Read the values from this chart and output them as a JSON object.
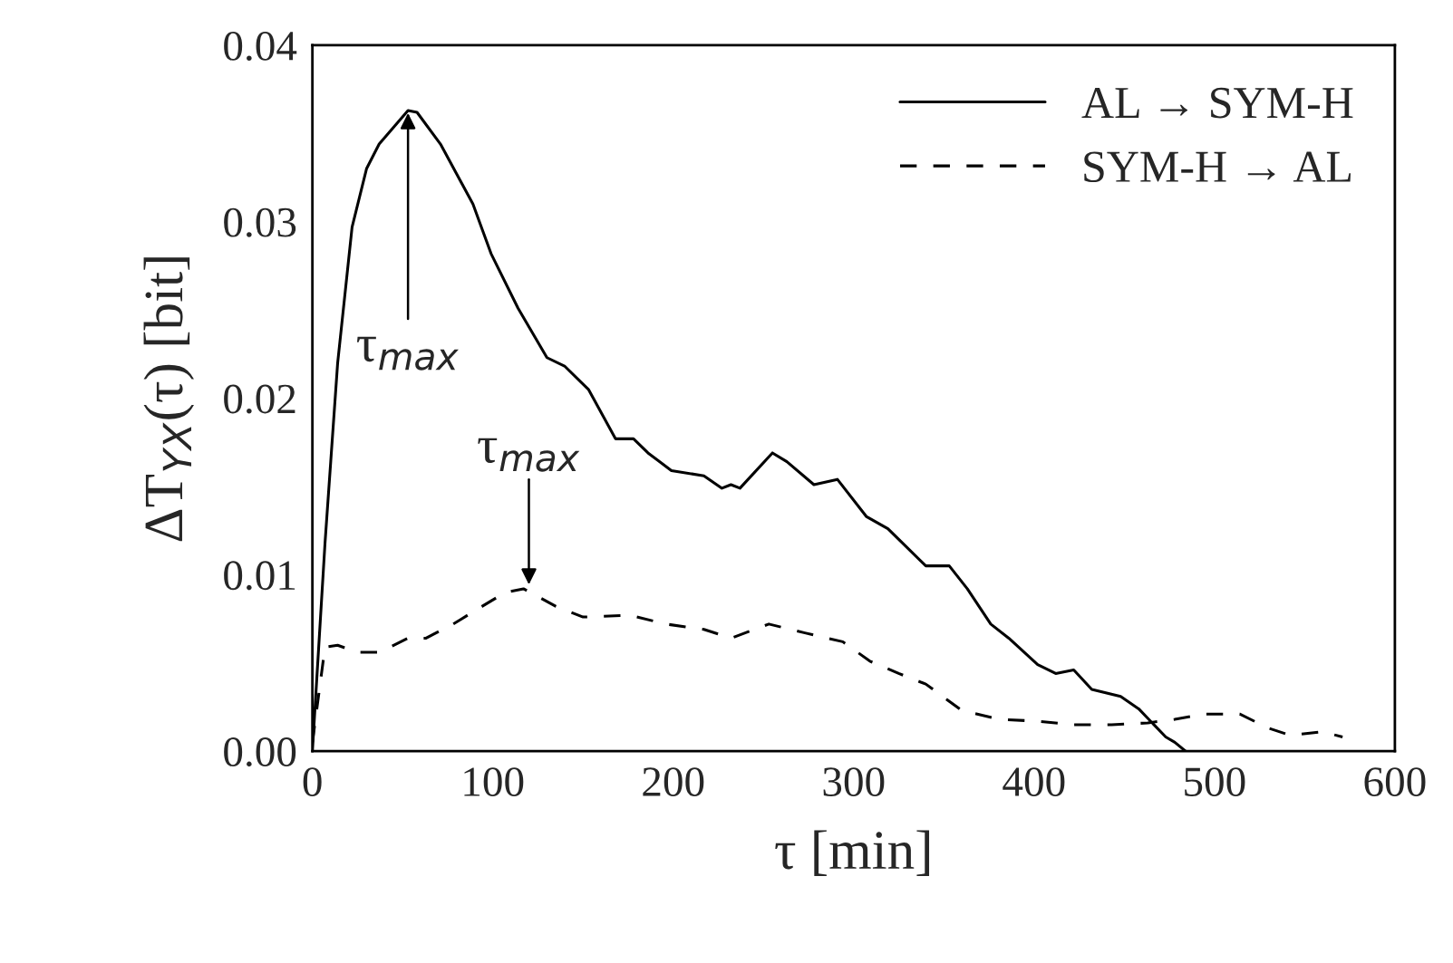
{
  "chart_data": {
    "type": "line",
    "xlabel": "τ [min]",
    "ylabel": "ΔT$_{YX}$(τ) [bit]",
    "xlim": [
      0,
      600
    ],
    "ylim": [
      0,
      0.04
    ],
    "xticks": [
      0,
      100,
      200,
      300,
      400,
      500,
      600
    ],
    "yticks": [
      {
        "value": 0,
        "label": "0.00"
      },
      {
        "value": 0.01,
        "label": "0.01"
      },
      {
        "value": 0.02,
        "label": "0.02"
      },
      {
        "value": 0.03,
        "label": "0.03"
      },
      {
        "value": 0.04,
        "label": "0.04"
      }
    ],
    "legend": "top right",
    "grid": false,
    "marker": "none",
    "annotations": [
      {
        "text": "τ$_{max}$",
        "x": 53,
        "y": 0.0363
      },
      {
        "text": "τ$_{max}$",
        "x": 120,
        "y": 0.0093
      }
    ],
    "series": [
      {
        "name": "AL → SYM-H",
        "color": "#000000",
        "line_style": "solid",
        "x": [
          0,
          7,
          14,
          22,
          30,
          37,
          53,
          58,
          71,
          89,
          99,
          114,
          130,
          140,
          153,
          168,
          178,
          186,
          199,
          217,
          227,
          232,
          237,
          255,
          263,
          278,
          291,
          307,
          319,
          330,
          340,
          353,
          363,
          376,
          386,
          402,
          412,
          422,
          432,
          448,
          458,
          473,
          478,
          484
        ],
        "values": [
          0,
          0.0118,
          0.022,
          0.0297,
          0.033,
          0.0344,
          0.0363,
          0.0362,
          0.0344,
          0.031,
          0.0282,
          0.0251,
          0.0223,
          0.0218,
          0.0205,
          0.0177,
          0.0177,
          0.0169,
          0.0159,
          0.0156,
          0.0149,
          0.0151,
          0.0149,
          0.0169,
          0.0164,
          0.0151,
          0.0154,
          0.0133,
          0.0126,
          0.0115,
          0.0105,
          0.0105,
          0.0092,
          0.0072,
          0.0064,
          0.0049,
          0.0044,
          0.0046,
          0.0035,
          0.0031,
          0.0024,
          0.0008,
          0.0005,
          0
        ]
      },
      {
        "name": "SYM-H → AL",
        "color": "#000000",
        "line_style": "dashed",
        "x": [
          0,
          7,
          14,
          25,
          37,
          53,
          63,
          78,
          94,
          107,
          117,
          135,
          150,
          176,
          196,
          217,
          232,
          253,
          273,
          294,
          309,
          325,
          340,
          360,
          381,
          402,
          422,
          443,
          463,
          478,
          494,
          514,
          530,
          542,
          560,
          571
        ],
        "values": [
          0.0005,
          0.0059,
          0.006,
          0.0056,
          0.0056,
          0.0064,
          0.0064,
          0.0072,
          0.0082,
          0.009,
          0.0092,
          0.0082,
          0.0076,
          0.0077,
          0.0072,
          0.0069,
          0.0064,
          0.0072,
          0.0067,
          0.0062,
          0.0051,
          0.0044,
          0.0038,
          0.0023,
          0.0018,
          0.0017,
          0.0015,
          0.0015,
          0.0016,
          0.0018,
          0.0021,
          0.0021,
          0.0013,
          0.0009,
          0.0011,
          0.0008
        ]
      }
    ]
  }
}
